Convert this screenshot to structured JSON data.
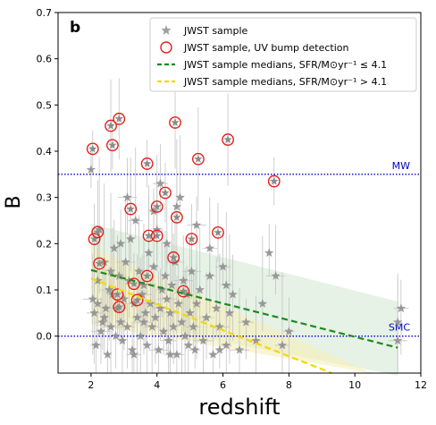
{
  "chart_data": {
    "type": "scatter",
    "panel_label": "b",
    "xlabel": "redshift",
    "ylabel": "B",
    "xlim": [
      1.0,
      12.0
    ],
    "ylim": [
      -0.08,
      0.7
    ],
    "xticks": [
      2,
      4,
      6,
      8,
      10,
      12
    ],
    "yticks": [
      0.0,
      0.1,
      0.2,
      0.3,
      0.4,
      0.5,
      0.6,
      0.7
    ],
    "ytick_labels": [
      "0.0",
      "0.1",
      "0.2",
      "0.3",
      "0.4",
      "0.5",
      "0.6",
      "0.7"
    ],
    "grid": false,
    "legend_position": "top-right",
    "legend": [
      {
        "label": "JWST sample",
        "marker": "star",
        "color": "#a0a0a0"
      },
      {
        "label": "JWST sample, UV bump detection",
        "marker": "open-circle",
        "color": "#e32119"
      },
      {
        "label": "JWST sample medians, SFR/M⊙yr⁻¹ ≤ 4.1",
        "marker": "dashed-line",
        "color": "#1f8a1f"
      },
      {
        "label": "JWST sample medians, SFR/M⊙yr⁻¹ > 4.1",
        "marker": "dashed-line",
        "color": "#f5d800"
      }
    ],
    "reference_lines": [
      {
        "label": "MW",
        "y": 0.35,
        "color": "#0000cc"
      },
      {
        "label": "SMC",
        "y": 0.0,
        "color": "#0000cc"
      }
    ],
    "series": [
      {
        "name": "JWST sample",
        "points": [
          [
            2.0,
            0.36
          ],
          [
            2.05,
            0.08
          ],
          [
            2.1,
            0.05
          ],
          [
            2.15,
            -0.02
          ],
          [
            2.2,
            0.07
          ],
          [
            2.25,
            0.23
          ],
          [
            2.3,
            0.01
          ],
          [
            2.35,
            0.03
          ],
          [
            2.4,
            0.16
          ],
          [
            2.45,
            0.06
          ],
          [
            2.5,
            -0.04
          ],
          [
            2.55,
            0.1
          ],
          [
            2.6,
            0.02
          ],
          [
            2.65,
            0.09
          ],
          [
            2.7,
            0.19
          ],
          [
            2.75,
            0.0
          ],
          [
            2.8,
            0.06
          ],
          [
            2.85,
            0.13
          ],
          [
            2.9,
            0.03
          ],
          [
            2.95,
            -0.01
          ],
          [
            3.0,
            0.08
          ],
          [
            3.05,
            0.16
          ],
          [
            3.1,
            0.02
          ],
          [
            3.15,
            0.12
          ],
          [
            3.2,
            0.21
          ],
          [
            3.25,
            -0.03
          ],
          [
            3.3,
            0.07
          ],
          [
            3.35,
            0.25
          ],
          [
            3.4,
            0.04
          ],
          [
            3.45,
            0.14
          ],
          [
            3.5,
            0.0
          ],
          [
            3.55,
            0.09
          ],
          [
            3.6,
            0.11
          ],
          [
            3.65,
            0.05
          ],
          [
            3.7,
            -0.02
          ],
          [
            3.75,
            0.18
          ],
          [
            3.8,
            0.07
          ],
          [
            3.85,
            0.02
          ],
          [
            3.9,
            0.15
          ],
          [
            3.95,
            0.04
          ],
          [
            4.0,
            0.23
          ],
          [
            4.05,
            -0.03
          ],
          [
            4.1,
            0.06
          ],
          [
            4.15,
            0.1
          ],
          [
            4.2,
            0.01
          ],
          [
            4.25,
            0.13
          ],
          [
            4.3,
            0.08
          ],
          [
            4.35,
            -0.01
          ],
          [
            4.4,
            0.05
          ],
          [
            4.45,
            0.11
          ],
          [
            4.5,
            0.02
          ],
          [
            4.55,
            0.16
          ],
          [
            4.6,
            -0.04
          ],
          [
            4.65,
            0.07
          ],
          [
            4.7,
            0.3
          ],
          [
            4.75,
            0.03
          ],
          [
            4.8,
            0.12
          ],
          [
            4.85,
            0.0
          ],
          [
            4.9,
            0.09
          ],
          [
            4.95,
            -0.02
          ],
          [
            5.0,
            0.05
          ],
          [
            5.05,
            0.14
          ],
          [
            5.1,
            0.02
          ],
          [
            5.15,
            -0.03
          ],
          [
            5.2,
            0.07
          ],
          [
            5.3,
            0.1
          ],
          [
            5.4,
            -0.01
          ],
          [
            5.5,
            0.04
          ],
          [
            5.6,
            0.13
          ],
          [
            5.7,
            -0.04
          ],
          [
            5.8,
            0.06
          ],
          [
            5.9,
            0.02
          ],
          [
            6.0,
            0.15
          ],
          [
            6.1,
            -0.02
          ],
          [
            6.2,
            0.05
          ],
          [
            6.3,
            0.09
          ],
          [
            6.5,
            -0.03
          ],
          [
            6.7,
            0.03
          ],
          [
            7.0,
            -0.01
          ],
          [
            7.2,
            0.07
          ],
          [
            7.4,
            0.18
          ],
          [
            7.6,
            0.13
          ],
          [
            7.8,
            -0.02
          ],
          [
            8.0,
            0.01
          ],
          [
            2.2,
            0.12
          ],
          [
            2.6,
            0.14
          ],
          [
            3.1,
            0.3
          ],
          [
            3.3,
            -0.04
          ],
          [
            3.9,
            0.27
          ],
          [
            4.3,
            0.2
          ],
          [
            4.6,
            0.28
          ],
          [
            5.2,
            0.24
          ],
          [
            5.6,
            0.19
          ],
          [
            6.1,
            0.11
          ],
          [
            2.9,
            0.2
          ],
          [
            2.4,
            0.04
          ],
          [
            3.6,
            0.03
          ],
          [
            4.1,
            0.33
          ],
          [
            4.4,
            -0.04
          ],
          [
            5.9,
            -0.03
          ],
          [
            11.3,
            0.03
          ],
          [
            11.3,
            -0.01
          ],
          [
            11.4,
            0.06
          ]
        ]
      },
      {
        "name": "JWST sample, UV bump detection",
        "points": [
          [
            2.05,
            0.405
          ],
          [
            2.1,
            0.21
          ],
          [
            2.2,
            0.225
          ],
          [
            2.25,
            0.157
          ],
          [
            2.6,
            0.455
          ],
          [
            2.65,
            0.413
          ],
          [
            2.85,
            0.47
          ],
          [
            2.8,
            0.09
          ],
          [
            2.85,
            0.063
          ],
          [
            3.2,
            0.275
          ],
          [
            3.3,
            0.113
          ],
          [
            3.4,
            0.078
          ],
          [
            3.7,
            0.373
          ],
          [
            3.75,
            0.217
          ],
          [
            3.7,
            0.13
          ],
          [
            4.0,
            0.217
          ],
          [
            4.0,
            0.28
          ],
          [
            4.25,
            0.31
          ],
          [
            4.55,
            0.462
          ],
          [
            4.5,
            0.17
          ],
          [
            4.6,
            0.257
          ],
          [
            4.8,
            0.097
          ],
          [
            5.05,
            0.21
          ],
          [
            5.25,
            0.383
          ],
          [
            5.85,
            0.224
          ],
          [
            6.15,
            0.425
          ],
          [
            7.55,
            0.335
          ]
        ]
      },
      {
        "name": "JWST sample medians, SFR/M⊙yr⁻¹ ≤ 4.1",
        "line": [
          [
            2.0,
            0.143
          ],
          [
            11.3,
            -0.025
          ]
        ]
      },
      {
        "name": "JWST sample medians, SFR/M⊙yr⁻¹ > 4.1",
        "line": [
          [
            2.0,
            0.125
          ],
          [
            9.3,
            -0.08
          ]
        ]
      }
    ]
  }
}
